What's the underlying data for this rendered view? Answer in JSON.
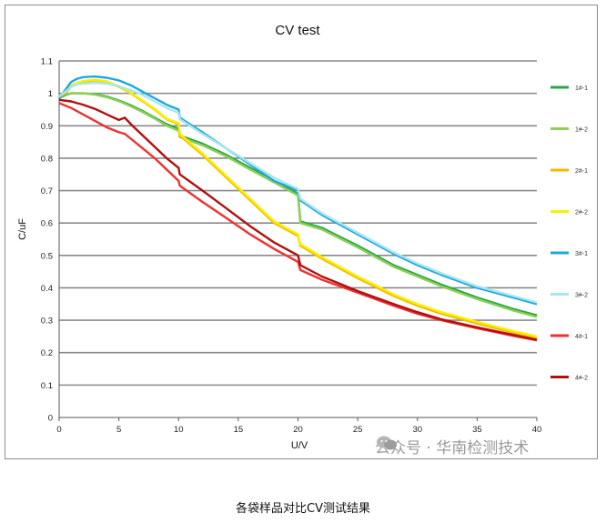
{
  "chart_data": {
    "type": "line",
    "title": "CV test",
    "xlabel": "U/V",
    "ylabel": "C/uF",
    "xlim": [
      0,
      40
    ],
    "ylim": [
      0,
      1.1
    ],
    "x_ticks": [
      "0",
      "5",
      "10",
      "15",
      "20",
      "25",
      "30",
      "35",
      "40"
    ],
    "y_ticks": [
      "0",
      "0.1",
      "0.2",
      "0.3",
      "0.4",
      "0.5",
      "0.6",
      "0.7",
      "0.8",
      "0.9",
      "1",
      "1.1"
    ],
    "grid": "horizontal",
    "legend_position": "right",
    "series": [
      {
        "name": "1#-1",
        "color": "#27a844",
        "x": [
          0,
          0.5,
          1,
          1.5,
          2,
          3,
          4,
          5,
          6,
          7,
          8,
          9,
          10,
          10.1,
          12,
          14,
          16,
          18,
          20,
          20.2,
          22,
          25,
          28,
          30,
          32,
          35,
          38,
          40
        ],
        "y": [
          0.985,
          0.995,
          1.0,
          1.0,
          1.0,
          0.997,
          0.99,
          0.978,
          0.963,
          0.945,
          0.925,
          0.905,
          0.89,
          0.87,
          0.845,
          0.81,
          0.77,
          0.73,
          0.69,
          0.605,
          0.585,
          0.53,
          0.47,
          0.44,
          0.41,
          0.37,
          0.335,
          0.315
        ]
      },
      {
        "name": "1#-2",
        "color": "#8fcf58",
        "x": [
          0,
          0.5,
          1,
          1.5,
          2,
          3,
          4,
          5,
          6,
          7,
          8,
          9,
          10,
          10.1,
          12,
          14,
          16,
          18,
          20,
          20.2,
          22,
          25,
          28,
          30,
          32,
          35,
          38,
          40
        ],
        "y": [
          0.99,
          0.998,
          1.0,
          1.0,
          1.0,
          0.996,
          0.988,
          0.976,
          0.96,
          0.942,
          0.922,
          0.9,
          0.885,
          0.865,
          0.84,
          0.805,
          0.765,
          0.725,
          0.685,
          0.6,
          0.58,
          0.525,
          0.465,
          0.435,
          0.405,
          0.365,
          0.33,
          0.31
        ]
      },
      {
        "name": "2#-1",
        "color": "#f5b800",
        "x": [
          0,
          0.5,
          1,
          1.5,
          2,
          3,
          4,
          5,
          6,
          7,
          8,
          9,
          10,
          10.1,
          12,
          14,
          16,
          18,
          20,
          20.2,
          22,
          25,
          28,
          30,
          32,
          35,
          38,
          40
        ],
        "y": [
          0.985,
          1.0,
          1.02,
          1.03,
          1.035,
          1.04,
          1.035,
          1.02,
          1.0,
          0.975,
          0.95,
          0.92,
          0.905,
          0.87,
          0.81,
          0.74,
          0.67,
          0.6,
          0.56,
          0.53,
          0.49,
          0.43,
          0.375,
          0.345,
          0.32,
          0.29,
          0.262,
          0.245
        ]
      },
      {
        "name": "2#-2",
        "color": "#f8f000",
        "x": [
          0,
          0.5,
          1,
          1.5,
          2,
          3,
          4,
          5,
          6,
          7,
          8,
          9,
          10,
          10.1,
          12,
          14,
          16,
          18,
          20,
          20.2,
          22,
          25,
          28,
          30,
          32,
          35,
          38,
          40
        ],
        "y": [
          0.99,
          1.005,
          1.025,
          1.032,
          1.038,
          1.042,
          1.037,
          1.022,
          1.002,
          0.977,
          0.952,
          0.922,
          0.908,
          0.875,
          0.815,
          0.745,
          0.675,
          0.605,
          0.565,
          0.535,
          0.495,
          0.435,
          0.38,
          0.35,
          0.325,
          0.295,
          0.267,
          0.25
        ]
      },
      {
        "name": "3#-1",
        "color": "#1fa8e0",
        "x": [
          0,
          0.5,
          1,
          1.5,
          2,
          3,
          4,
          5,
          6,
          7,
          8,
          9,
          10,
          10.1,
          12,
          14,
          16,
          18,
          20,
          20.2,
          22,
          25,
          28,
          30,
          32,
          35,
          38,
          40
        ],
        "y": [
          0.985,
          1.01,
          1.035,
          1.045,
          1.05,
          1.052,
          1.048,
          1.04,
          1.025,
          1.005,
          0.985,
          0.965,
          0.95,
          0.925,
          0.88,
          0.83,
          0.78,
          0.73,
          0.7,
          0.67,
          0.625,
          0.565,
          0.505,
          0.47,
          0.44,
          0.4,
          0.37,
          0.35
        ]
      },
      {
        "name": "3#-2",
        "color": "#a8e6ee",
        "x": [
          0,
          0.5,
          1,
          1.5,
          2,
          3,
          4,
          5,
          6,
          7,
          8,
          9,
          10,
          10.1,
          12,
          14,
          16,
          18,
          20,
          20.2,
          22,
          25,
          28,
          30,
          32,
          35,
          38,
          40
        ],
        "y": [
          0.99,
          1.005,
          1.02,
          1.028,
          1.03,
          1.032,
          1.03,
          1.022,
          1.01,
          0.995,
          0.975,
          0.955,
          0.94,
          0.92,
          0.875,
          0.83,
          0.785,
          0.74,
          0.705,
          0.675,
          0.63,
          0.57,
          0.51,
          0.475,
          0.445,
          0.405,
          0.375,
          0.355
        ]
      },
      {
        "name": "4#-1",
        "color": "#f03030",
        "x": [
          0,
          1,
          2,
          3,
          4,
          5,
          5.5,
          6,
          7,
          8,
          9,
          10,
          10.1,
          12,
          14,
          16,
          18,
          20,
          20.2,
          22,
          25,
          28,
          30,
          32,
          35,
          38,
          40
        ],
        "y": [
          0.97,
          0.955,
          0.935,
          0.915,
          0.895,
          0.88,
          0.875,
          0.86,
          0.83,
          0.8,
          0.765,
          0.73,
          0.715,
          0.665,
          0.615,
          0.565,
          0.52,
          0.48,
          0.455,
          0.425,
          0.385,
          0.345,
          0.32,
          0.3,
          0.275,
          0.252,
          0.238
        ]
      },
      {
        "name": "4#-2",
        "color": "#b01010",
        "x": [
          0,
          1,
          2,
          3,
          4,
          5,
          5.5,
          6,
          7,
          8,
          9,
          10,
          10.1,
          12,
          14,
          16,
          18,
          20,
          20.2,
          22,
          25,
          28,
          30,
          32,
          35,
          38,
          40
        ],
        "y": [
          0.98,
          0.975,
          0.965,
          0.952,
          0.935,
          0.918,
          0.925,
          0.905,
          0.87,
          0.835,
          0.8,
          0.77,
          0.75,
          0.7,
          0.645,
          0.59,
          0.54,
          0.5,
          0.47,
          0.435,
          0.39,
          0.35,
          0.325,
          0.303,
          0.278,
          0.255,
          0.24
        ]
      }
    ]
  },
  "caption": "各袋样品对比CV测试结果",
  "watermark": "公众号 · 华南检测技术"
}
